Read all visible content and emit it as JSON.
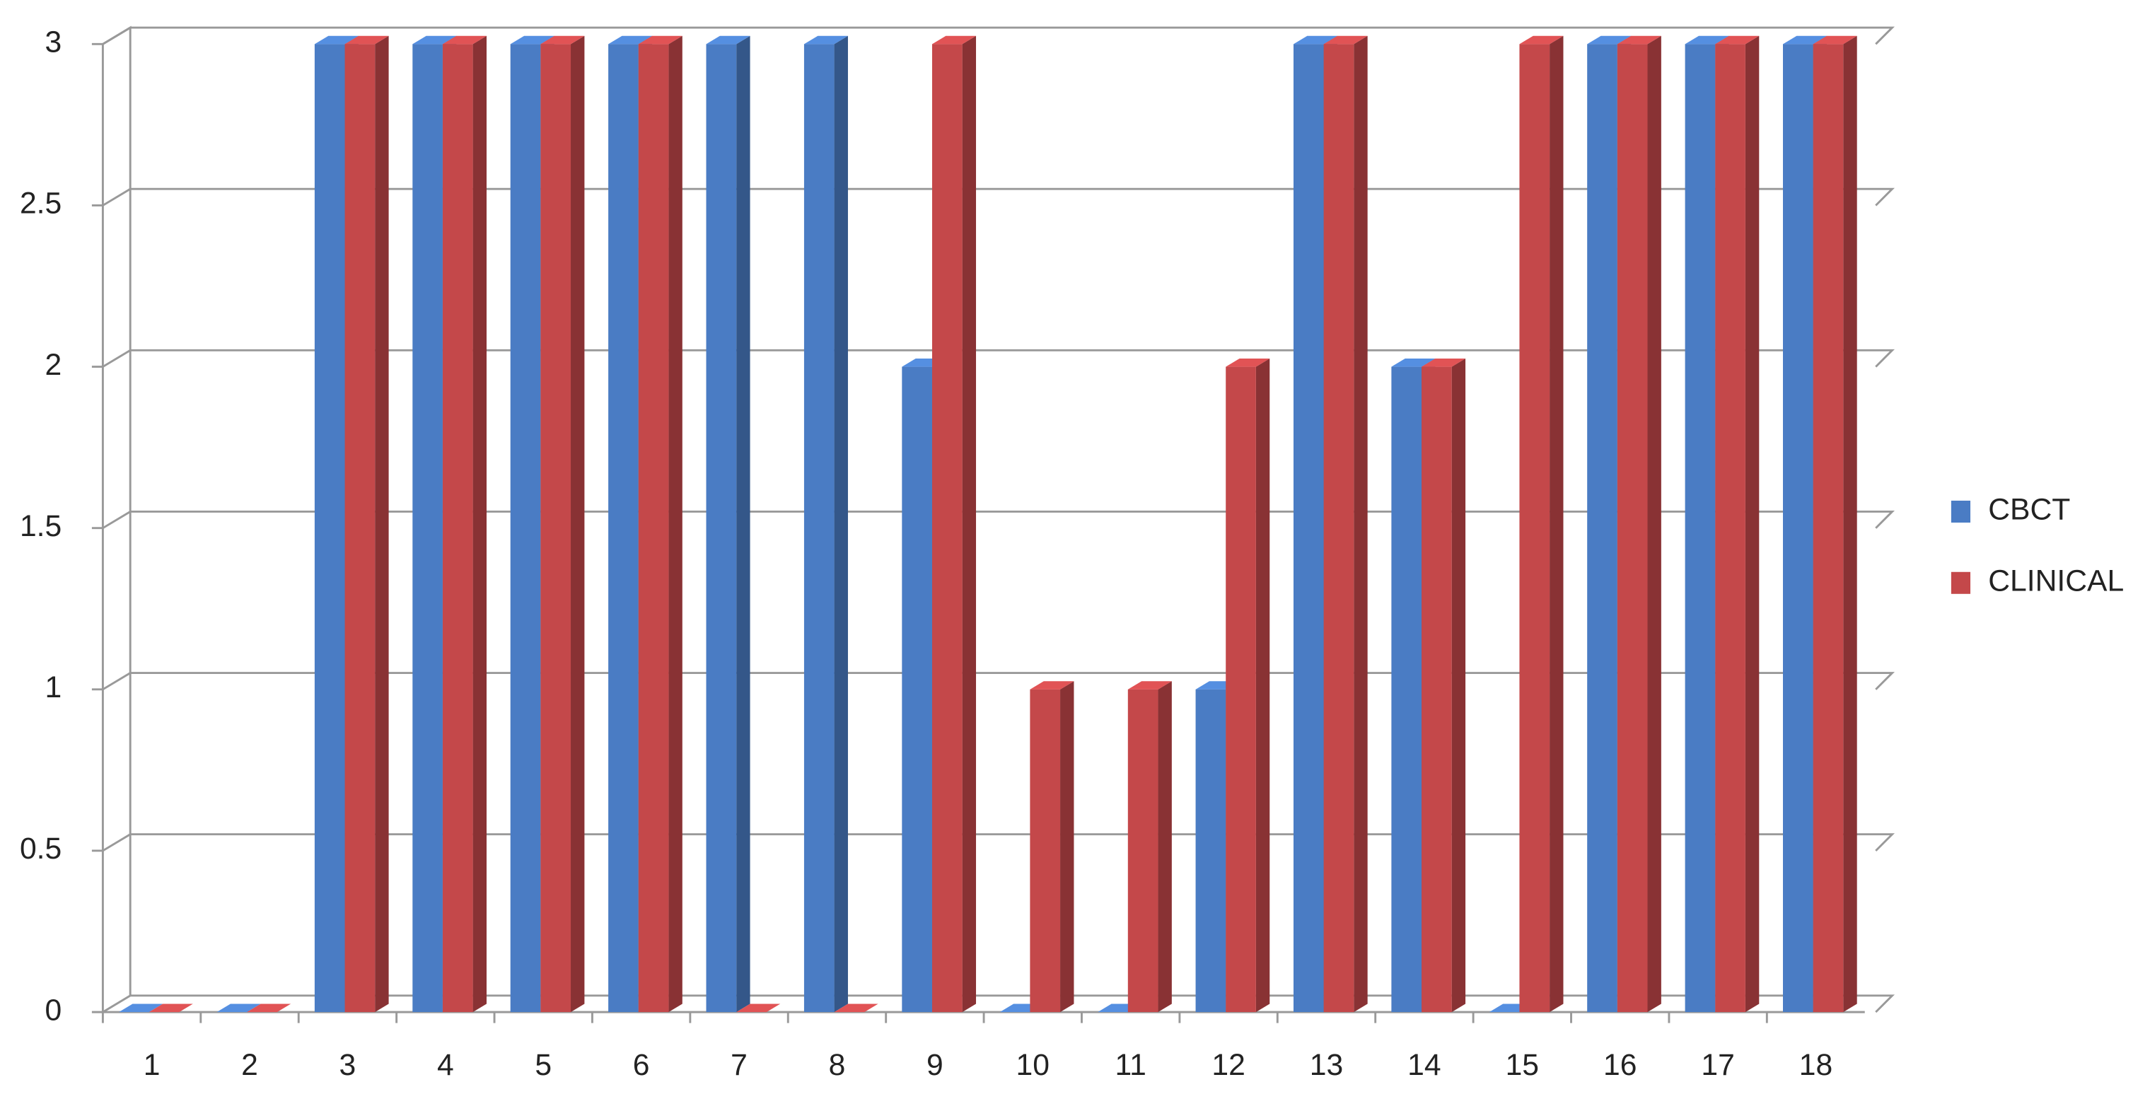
{
  "chart_data": {
    "type": "bar3d",
    "categories": [
      "1",
      "2",
      "3",
      "4",
      "5",
      "6",
      "7",
      "8",
      "9",
      "10",
      "11",
      "12",
      "13",
      "14",
      "15",
      "16",
      "17",
      "18"
    ],
    "series": [
      {
        "name": "CBCT",
        "color": "#4a7cc4",
        "values": [
          0,
          0,
          3,
          3,
          3,
          3,
          3,
          3,
          2,
          0,
          0,
          1,
          3,
          2,
          0,
          3,
          3,
          3
        ]
      },
      {
        "name": "CLINICAL",
        "color": "#c4484a",
        "values": [
          0,
          0,
          3,
          3,
          3,
          3,
          0,
          0,
          3,
          1,
          1,
          2,
          3,
          2,
          3,
          3,
          3,
          3
        ]
      }
    ],
    "ylim": [
      0,
      3
    ],
    "yticks": [
      0,
      0.5,
      1,
      1.5,
      2,
      2.5,
      3
    ],
    "grid": true,
    "legend": "right"
  }
}
